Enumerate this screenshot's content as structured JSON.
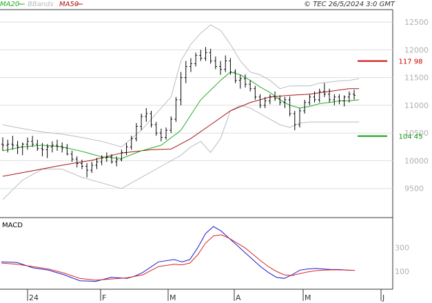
{
  "header": {
    "legend": [
      {
        "label": "MA20",
        "color": "#22aa22"
      },
      {
        "label": "BBands",
        "color": "#bbbbbb"
      },
      {
        "label": "MA50",
        "color": "#aa1111"
      }
    ],
    "copyright": "© TEC 26/5/2024 3:0 GMT"
  },
  "colors": {
    "price": "#000000",
    "ma20": "#22aa22",
    "ma50": "#aa1111",
    "bbands": "#bbbbbb",
    "grid": "#dddddd",
    "macd": "#1a1acc",
    "signal": "#dd2222",
    "resistance": "#cc0000",
    "support": "#119911"
  },
  "chart_data": [
    {
      "type": "line",
      "title": "",
      "x_labels": [
        "24",
        "F",
        "M",
        "A",
        "M",
        "J"
      ],
      "y_ticks": [
        9500,
        10000,
        10500,
        11000,
        11500,
        12000,
        12500
      ],
      "ylim": [
        9000,
        12700
      ],
      "grid": true,
      "levels": [
        {
          "name": "resistance",
          "value": 11798,
          "label": "117 98"
        },
        {
          "name": "support",
          "value": 10445,
          "label": "104 45"
        }
      ],
      "ohlc": [
        [
          10300,
          10420,
          10180,
          10280
        ],
        [
          10280,
          10380,
          10150,
          10300
        ],
        [
          10300,
          10450,
          10200,
          10280
        ],
        [
          10280,
          10360,
          10120,
          10250
        ],
        [
          10250,
          10330,
          10100,
          10300
        ],
        [
          10300,
          10420,
          10200,
          10350
        ],
        [
          10350,
          10450,
          10250,
          10300
        ],
        [
          10300,
          10380,
          10180,
          10220
        ],
        [
          10220,
          10320,
          10080,
          10200
        ],
        [
          10200,
          10300,
          10050,
          10250
        ],
        [
          10250,
          10350,
          10150,
          10280
        ],
        [
          10280,
          10380,
          10180,
          10260
        ],
        [
          10260,
          10330,
          10150,
          10230
        ],
        [
          10230,
          10300,
          10100,
          10120
        ],
        [
          10120,
          10180,
          9980,
          10030
        ],
        [
          10030,
          10080,
          9880,
          9950
        ],
        [
          9950,
          10020,
          9850,
          9900
        ],
        [
          9900,
          9960,
          9700,
          9830
        ],
        [
          9830,
          9980,
          9780,
          9920
        ],
        [
          9920,
          10050,
          9850,
          9980
        ],
        [
          9980,
          10100,
          9920,
          10050
        ],
        [
          10050,
          10150,
          9980,
          10070
        ],
        [
          10070,
          10120,
          9950,
          9980
        ],
        [
          9980,
          10080,
          9900,
          10020
        ],
        [
          10020,
          10200,
          9990,
          10150
        ],
        [
          10150,
          10320,
          10100,
          10250
        ],
        [
          10250,
          10450,
          10200,
          10400
        ],
        [
          10400,
          10680,
          10350,
          10620
        ],
        [
          10620,
          10850,
          10550,
          10800
        ],
        [
          10800,
          10950,
          10700,
          10850
        ],
        [
          10850,
          10900,
          10600,
          10650
        ],
        [
          10650,
          10700,
          10450,
          10500
        ],
        [
          10500,
          10580,
          10350,
          10420
        ],
        [
          10420,
          10600,
          10380,
          10550
        ],
        [
          10550,
          10800,
          10500,
          10750
        ],
        [
          10750,
          11150,
          10700,
          11100
        ],
        [
          11100,
          11600,
          11000,
          11500
        ],
        [
          11500,
          11800,
          11400,
          11700
        ],
        [
          11700,
          11850,
          11600,
          11750
        ],
        [
          11750,
          11950,
          11700,
          11900
        ],
        [
          11900,
          12000,
          11800,
          11850
        ],
        [
          11850,
          12050,
          11800,
          11950
        ],
        [
          11950,
          12020,
          11750,
          11800
        ],
        [
          11800,
          11880,
          11650,
          11700
        ],
        [
          11700,
          11800,
          11550,
          11650
        ],
        [
          11650,
          11900,
          11600,
          11800
        ],
        [
          11800,
          11850,
          11550,
          11600
        ],
        [
          11600,
          11650,
          11400,
          11450
        ],
        [
          11450,
          11550,
          11300,
          11480
        ],
        [
          11480,
          11560,
          11320,
          11380
        ],
        [
          11380,
          11450,
          11250,
          11300
        ],
        [
          11300,
          11350,
          11100,
          11150
        ],
        [
          11150,
          11200,
          10950,
          11000
        ],
        [
          11000,
          11150,
          10950,
          11080
        ],
        [
          11080,
          11200,
          11020,
          11150
        ],
        [
          11150,
          11250,
          11080,
          11120
        ],
        [
          11120,
          11180,
          11000,
          11050
        ],
        [
          11050,
          11150,
          10950,
          11100
        ],
        [
          11100,
          11160,
          10800,
          10850
        ],
        [
          10850,
          10900,
          10550,
          10650
        ],
        [
          10650,
          10950,
          10600,
          10900
        ],
        [
          10900,
          11100,
          10850,
          11050
        ],
        [
          11050,
          11200,
          11000,
          11150
        ],
        [
          11150,
          11250,
          11050,
          11100
        ],
        [
          11100,
          11300,
          11050,
          11250
        ],
        [
          11250,
          11400,
          11150,
          11200
        ],
        [
          11200,
          11300,
          11050,
          11100
        ],
        [
          11100,
          11200,
          11000,
          11150
        ],
        [
          11150,
          11200,
          11020,
          11080
        ],
        [
          11080,
          11180,
          10980,
          11150
        ],
        [
          11150,
          11250,
          11050,
          11200
        ],
        [
          11200,
          11280,
          11100,
          11180
        ]
      ],
      "ma20": [
        [
          0,
          10180
        ],
        [
          4,
          10250
        ],
        [
          8,
          10280
        ],
        [
          12,
          10250
        ],
        [
          16,
          10170
        ],
        [
          20,
          10070
        ],
        [
          24,
          10040
        ],
        [
          28,
          10180
        ],
        [
          32,
          10280
        ],
        [
          36,
          10550
        ],
        [
          40,
          11100
        ],
        [
          44,
          11450
        ],
        [
          46,
          11600
        ],
        [
          48,
          11550
        ],
        [
          50,
          11450
        ],
        [
          52,
          11330
        ],
        [
          54,
          11230
        ],
        [
          56,
          11100
        ],
        [
          58,
          11000
        ],
        [
          60,
          10950
        ],
        [
          62,
          10980
        ],
        [
          64,
          11030
        ],
        [
          66,
          11050
        ],
        [
          68,
          11080
        ],
        [
          70,
          11080
        ],
        [
          72,
          11100
        ]
      ],
      "ma50": [
        [
          0,
          9720
        ],
        [
          6,
          9820
        ],
        [
          12,
          9920
        ],
        [
          18,
          10010
        ],
        [
          24,
          10140
        ],
        [
          30,
          10200
        ],
        [
          34,
          10210
        ],
        [
          38,
          10400
        ],
        [
          42,
          10650
        ],
        [
          46,
          10900
        ],
        [
          50,
          11050
        ],
        [
          54,
          11150
        ],
        [
          58,
          11180
        ],
        [
          62,
          11200
        ],
        [
          66,
          11250
        ],
        [
          70,
          11300
        ],
        [
          72,
          11300
        ]
      ],
      "bb_upper": [
        [
          0,
          10650
        ],
        [
          4,
          10580
        ],
        [
          8,
          10520
        ],
        [
          12,
          10480
        ],
        [
          16,
          10420
        ],
        [
          20,
          10350
        ],
        [
          24,
          10250
        ],
        [
          28,
          10550
        ],
        [
          32,
          10950
        ],
        [
          34,
          11150
        ],
        [
          36,
          11800
        ],
        [
          38,
          12100
        ],
        [
          40,
          12300
        ],
        [
          42,
          12450
        ],
        [
          44,
          12350
        ],
        [
          46,
          12100
        ],
        [
          48,
          11800
        ],
        [
          50,
          11600
        ],
        [
          52,
          11550
        ],
        [
          54,
          11450
        ],
        [
          56,
          11300
        ],
        [
          58,
          11350
        ],
        [
          60,
          11350
        ],
        [
          62,
          11350
        ],
        [
          64,
          11400
        ],
        [
          66,
          11420
        ],
        [
          68,
          11440
        ],
        [
          70,
          11450
        ],
        [
          72,
          11480
        ]
      ],
      "bb_lower": [
        [
          0,
          9300
        ],
        [
          4,
          9650
        ],
        [
          8,
          9850
        ],
        [
          12,
          9850
        ],
        [
          16,
          9700
        ],
        [
          20,
          9600
        ],
        [
          24,
          9500
        ],
        [
          28,
          9700
        ],
        [
          32,
          9900
        ],
        [
          34,
          10000
        ],
        [
          36,
          10100
        ],
        [
          38,
          10250
        ],
        [
          40,
          10350
        ],
        [
          42,
          10150
        ],
        [
          44,
          10400
        ],
        [
          46,
          10900
        ],
        [
          48,
          11000
        ],
        [
          50,
          10950
        ],
        [
          52,
          10850
        ],
        [
          54,
          10750
        ],
        [
          56,
          10650
        ],
        [
          58,
          10600
        ],
        [
          60,
          10680
        ],
        [
          62,
          10700
        ],
        [
          64,
          10700
        ],
        [
          66,
          10700
        ],
        [
          68,
          10700
        ],
        [
          70,
          10700
        ],
        [
          72,
          10700
        ]
      ]
    },
    {
      "type": "line",
      "title": "MACD",
      "y_ticks": [
        100,
        300
      ],
      "series": [
        {
          "name": "macd",
          "values": [
            [
              0,
              180
            ],
            [
              4,
              175
            ],
            [
              8,
              130
            ],
            [
              12,
              110
            ],
            [
              16,
              70
            ],
            [
              20,
              20
            ],
            [
              24,
              15
            ],
            [
              28,
              50
            ],
            [
              32,
              40
            ],
            [
              34,
              60
            ],
            [
              36,
              90
            ],
            [
              40,
              180
            ],
            [
              44,
              200
            ],
            [
              46,
              180
            ],
            [
              48,
              200
            ],
            [
              50,
              300
            ],
            [
              52,
              420
            ],
            [
              54,
              480
            ],
            [
              56,
              440
            ],
            [
              58,
              380
            ],
            [
              60,
              320
            ],
            [
              62,
              260
            ],
            [
              64,
              200
            ],
            [
              66,
              140
            ],
            [
              68,
              90
            ],
            [
              70,
              50
            ],
            [
              72,
              40
            ],
            [
              74,
              70
            ],
            [
              76,
              110
            ],
            [
              78,
              120
            ],
            [
              80,
              125
            ],
            [
              82,
              120
            ],
            [
              84,
              115
            ],
            [
              86,
              115
            ],
            [
              88,
              110
            ],
            [
              90,
              108
            ]
          ]
        },
        {
          "name": "signal",
          "values": [
            [
              0,
              170
            ],
            [
              4,
              160
            ],
            [
              8,
              140
            ],
            [
              12,
              120
            ],
            [
              16,
              85
            ],
            [
              20,
              40
            ],
            [
              24,
              25
            ],
            [
              28,
              35
            ],
            [
              32,
              45
            ],
            [
              36,
              70
            ],
            [
              40,
              140
            ],
            [
              44,
              160
            ],
            [
              46,
              155
            ],
            [
              48,
              170
            ],
            [
              50,
              240
            ],
            [
              52,
              340
            ],
            [
              54,
              400
            ],
            [
              56,
              410
            ],
            [
              58,
              380
            ],
            [
              60,
              340
            ],
            [
              62,
              300
            ],
            [
              64,
              245
            ],
            [
              66,
              190
            ],
            [
              68,
              140
            ],
            [
              70,
              100
            ],
            [
              72,
              70
            ],
            [
              74,
              65
            ],
            [
              76,
              80
            ],
            [
              78,
              95
            ],
            [
              80,
              105
            ],
            [
              82,
              110
            ],
            [
              84,
              112
            ],
            [
              86,
              112
            ],
            [
              88,
              110
            ],
            [
              90,
              108
            ]
          ]
        }
      ]
    }
  ]
}
